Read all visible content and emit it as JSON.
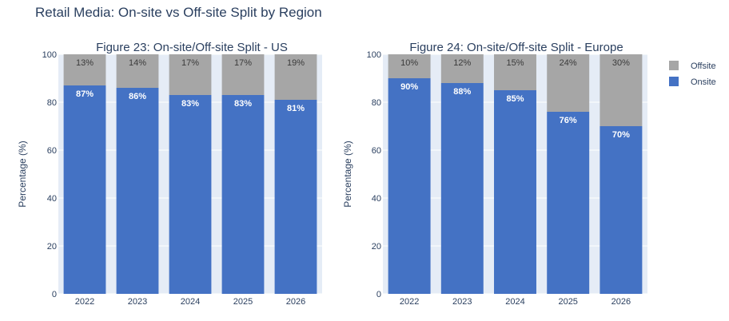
{
  "title": "Retail Media: On-site vs Off-site Split by Region",
  "legend": [
    {
      "name": "Offsite",
      "color": "#a6a6a6"
    },
    {
      "name": "Onsite",
      "color": "#4472c4"
    }
  ],
  "chart_data": [
    {
      "type": "bar",
      "stacked": true,
      "title": "Figure 23: On-site/Off-site Split - US",
      "categories": [
        "2022",
        "2023",
        "2024",
        "2025",
        "2026"
      ],
      "series": [
        {
          "name": "Onsite",
          "values": [
            87,
            86,
            83,
            83,
            81
          ],
          "labels": [
            "87%",
            "86%",
            "83%",
            "83%",
            "81%"
          ]
        },
        {
          "name": "Offsite",
          "values": [
            13,
            14,
            17,
            17,
            19
          ],
          "labels": [
            "13%",
            "14%",
            "17%",
            "17%",
            "19%"
          ]
        }
      ],
      "xlabel": "",
      "ylabel": "Percentage (%)",
      "ylim": [
        0,
        100
      ],
      "yticks": [
        "0",
        "20",
        "40",
        "60",
        "80",
        "100"
      ]
    },
    {
      "type": "bar",
      "stacked": true,
      "title": "Figure 24: On-site/Off-site Split - Europe",
      "categories": [
        "2022",
        "2023",
        "2024",
        "2025",
        "2026"
      ],
      "series": [
        {
          "name": "Onsite",
          "values": [
            90,
            88,
            85,
            76,
            70
          ],
          "labels": [
            "90%",
            "88%",
            "85%",
            "76%",
            "70%"
          ]
        },
        {
          "name": "Offsite",
          "values": [
            10,
            12,
            15,
            24,
            30
          ],
          "labels": [
            "10%",
            "12%",
            "15%",
            "24%",
            "30%"
          ]
        }
      ],
      "xlabel": "",
      "ylabel": "Percentage (%)",
      "ylim": [
        0,
        100
      ],
      "yticks": [
        "0",
        "20",
        "40",
        "60",
        "80",
        "100"
      ]
    }
  ]
}
